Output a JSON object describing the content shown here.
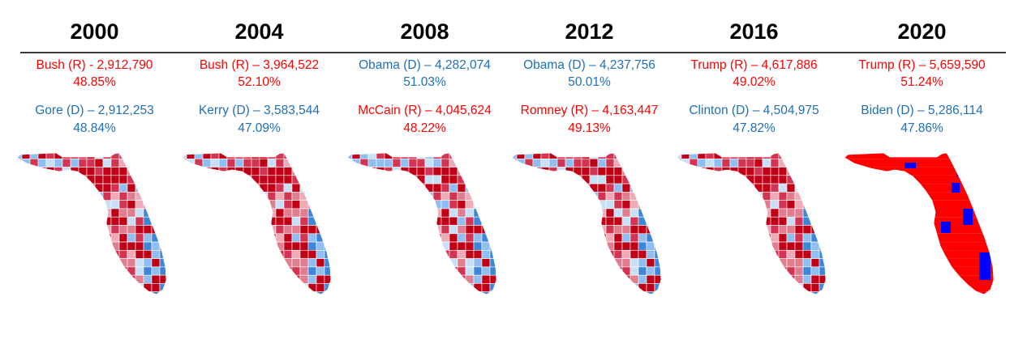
{
  "colors": {
    "rep": "#ff0000",
    "dem": "#1f6fb8",
    "rep_dark": "#c00017",
    "rep_mid": "#d23452",
    "rep_light": "#e07d8f",
    "rep_pale": "#f0aab6",
    "dem_light": "#8fbef2",
    "dem_mid": "#3d86d8",
    "dem_pale": "#c8dff8",
    "map2020_rep": "#ff0000",
    "map2020_dem": "#0000ff"
  },
  "elections": [
    {
      "year": "2000",
      "first": {
        "text": "Bush (R) - 2,912,790",
        "pct": "48.85%",
        "party": "rep"
      },
      "second": {
        "text": "Gore (D) – 2,912,253",
        "pct": "48.84%",
        "party": "dem"
      },
      "map_style": "shaded",
      "dem_share": "mixed"
    },
    {
      "year": "2004",
      "first": {
        "text": "Bush (R) – 3,964,522",
        "pct": "52.10%",
        "party": "rep"
      },
      "second": {
        "text": "Kerry (D) – 3,583,544",
        "pct": "47.09%",
        "party": "dem"
      },
      "map_style": "shaded",
      "dem_share": "low"
    },
    {
      "year": "2008",
      "first": {
        "text": "Obama (D) – 4,282,074",
        "pct": "51.03%",
        "party": "dem"
      },
      "second": {
        "text": "McCain (R) – 4,045,624",
        "pct": "48.22%",
        "party": "rep"
      },
      "map_style": "shaded",
      "dem_share": "high"
    },
    {
      "year": "2012",
      "first": {
        "text": "Obama (D) – 4,237,756",
        "pct": "50.01%",
        "party": "dem"
      },
      "second": {
        "text": "Romney (R) – 4,163,447",
        "pct": "49.13%",
        "party": "rep"
      },
      "map_style": "shaded",
      "dem_share": "mid"
    },
    {
      "year": "2016",
      "first": {
        "text": "Trump (R) – 4,617,886",
        "pct": "49.02%",
        "party": "rep"
      },
      "second": {
        "text": "Clinton (D) – 4,504,975",
        "pct": "47.82%",
        "party": "dem"
      },
      "map_style": "shaded",
      "dem_share": "low"
    },
    {
      "year": "2020",
      "first": {
        "text": "Trump (R) – 5,659,590",
        "pct": "51.24%",
        "party": "rep"
      },
      "second": {
        "text": "Biden (D) – 5,286,114",
        "pct": "47.86%",
        "party": "dem"
      },
      "map_style": "flat",
      "dem_share": "min"
    }
  ]
}
